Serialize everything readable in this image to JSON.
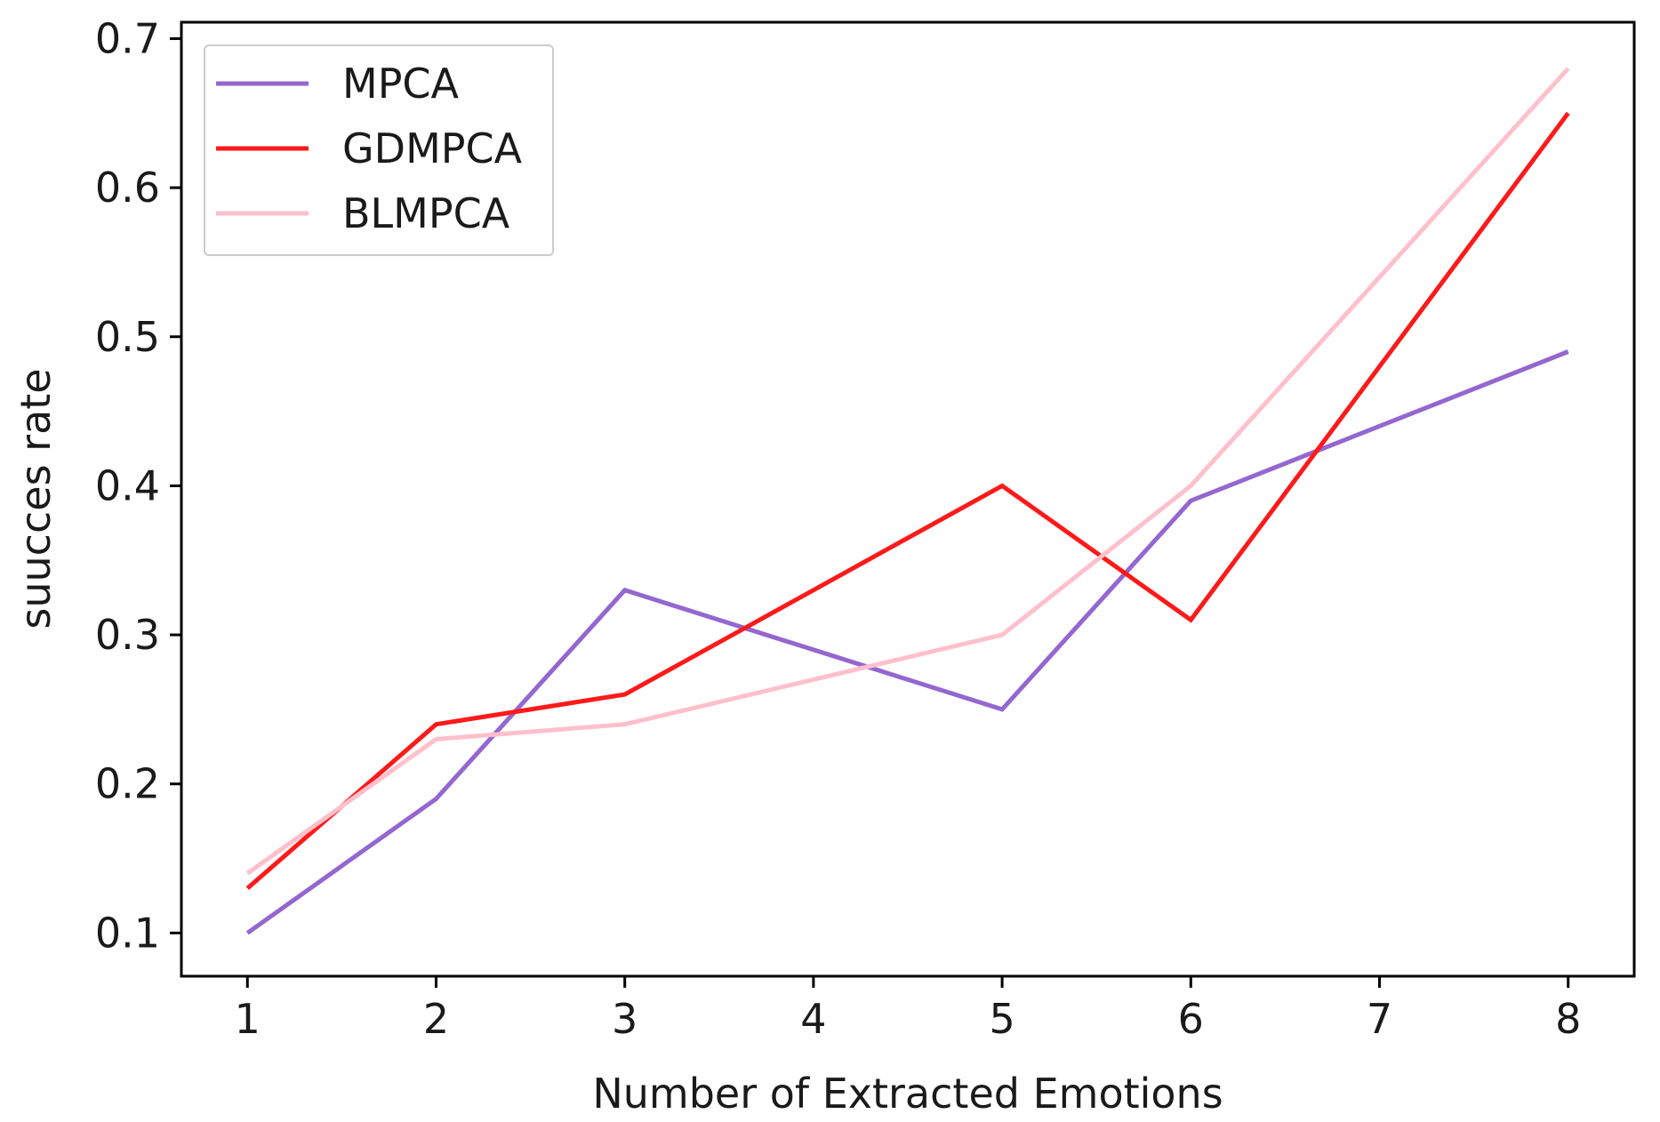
{
  "chart_data": {
    "type": "line",
    "title": "",
    "xlabel": "Number of Extracted Emotions",
    "ylabel": "suucces rate",
    "x": [
      1,
      2,
      3,
      4,
      5,
      6,
      7,
      8
    ],
    "xticks": [
      "1",
      "2",
      "3",
      "4",
      "5",
      "6",
      "7",
      "8"
    ],
    "yticks": [
      "0.1",
      "0.2",
      "0.3",
      "0.4",
      "0.5",
      "0.6",
      "0.7"
    ],
    "ytick_values": [
      0.1,
      0.2,
      0.3,
      0.4,
      0.5,
      0.6,
      0.7
    ],
    "xlim": [
      0.65,
      8.35
    ],
    "ylim": [
      0.071,
      0.711
    ],
    "grid": false,
    "legend_position": "top-left",
    "series": [
      {
        "name": "MPCA",
        "color": "#9467d0",
        "values": [
          0.1,
          0.19,
          0.33,
          null,
          0.25,
          0.39,
          null,
          0.49
        ]
      },
      {
        "name": "GDMPCA",
        "color": "#ff1a1a",
        "values": [
          0.13,
          0.24,
          0.26,
          null,
          0.4,
          0.31,
          null,
          0.65
        ]
      },
      {
        "name": "BLMPCA",
        "color": "#ffc0cb",
        "values": [
          0.14,
          0.23,
          0.24,
          null,
          0.3,
          0.4,
          null,
          0.68
        ]
      }
    ]
  }
}
